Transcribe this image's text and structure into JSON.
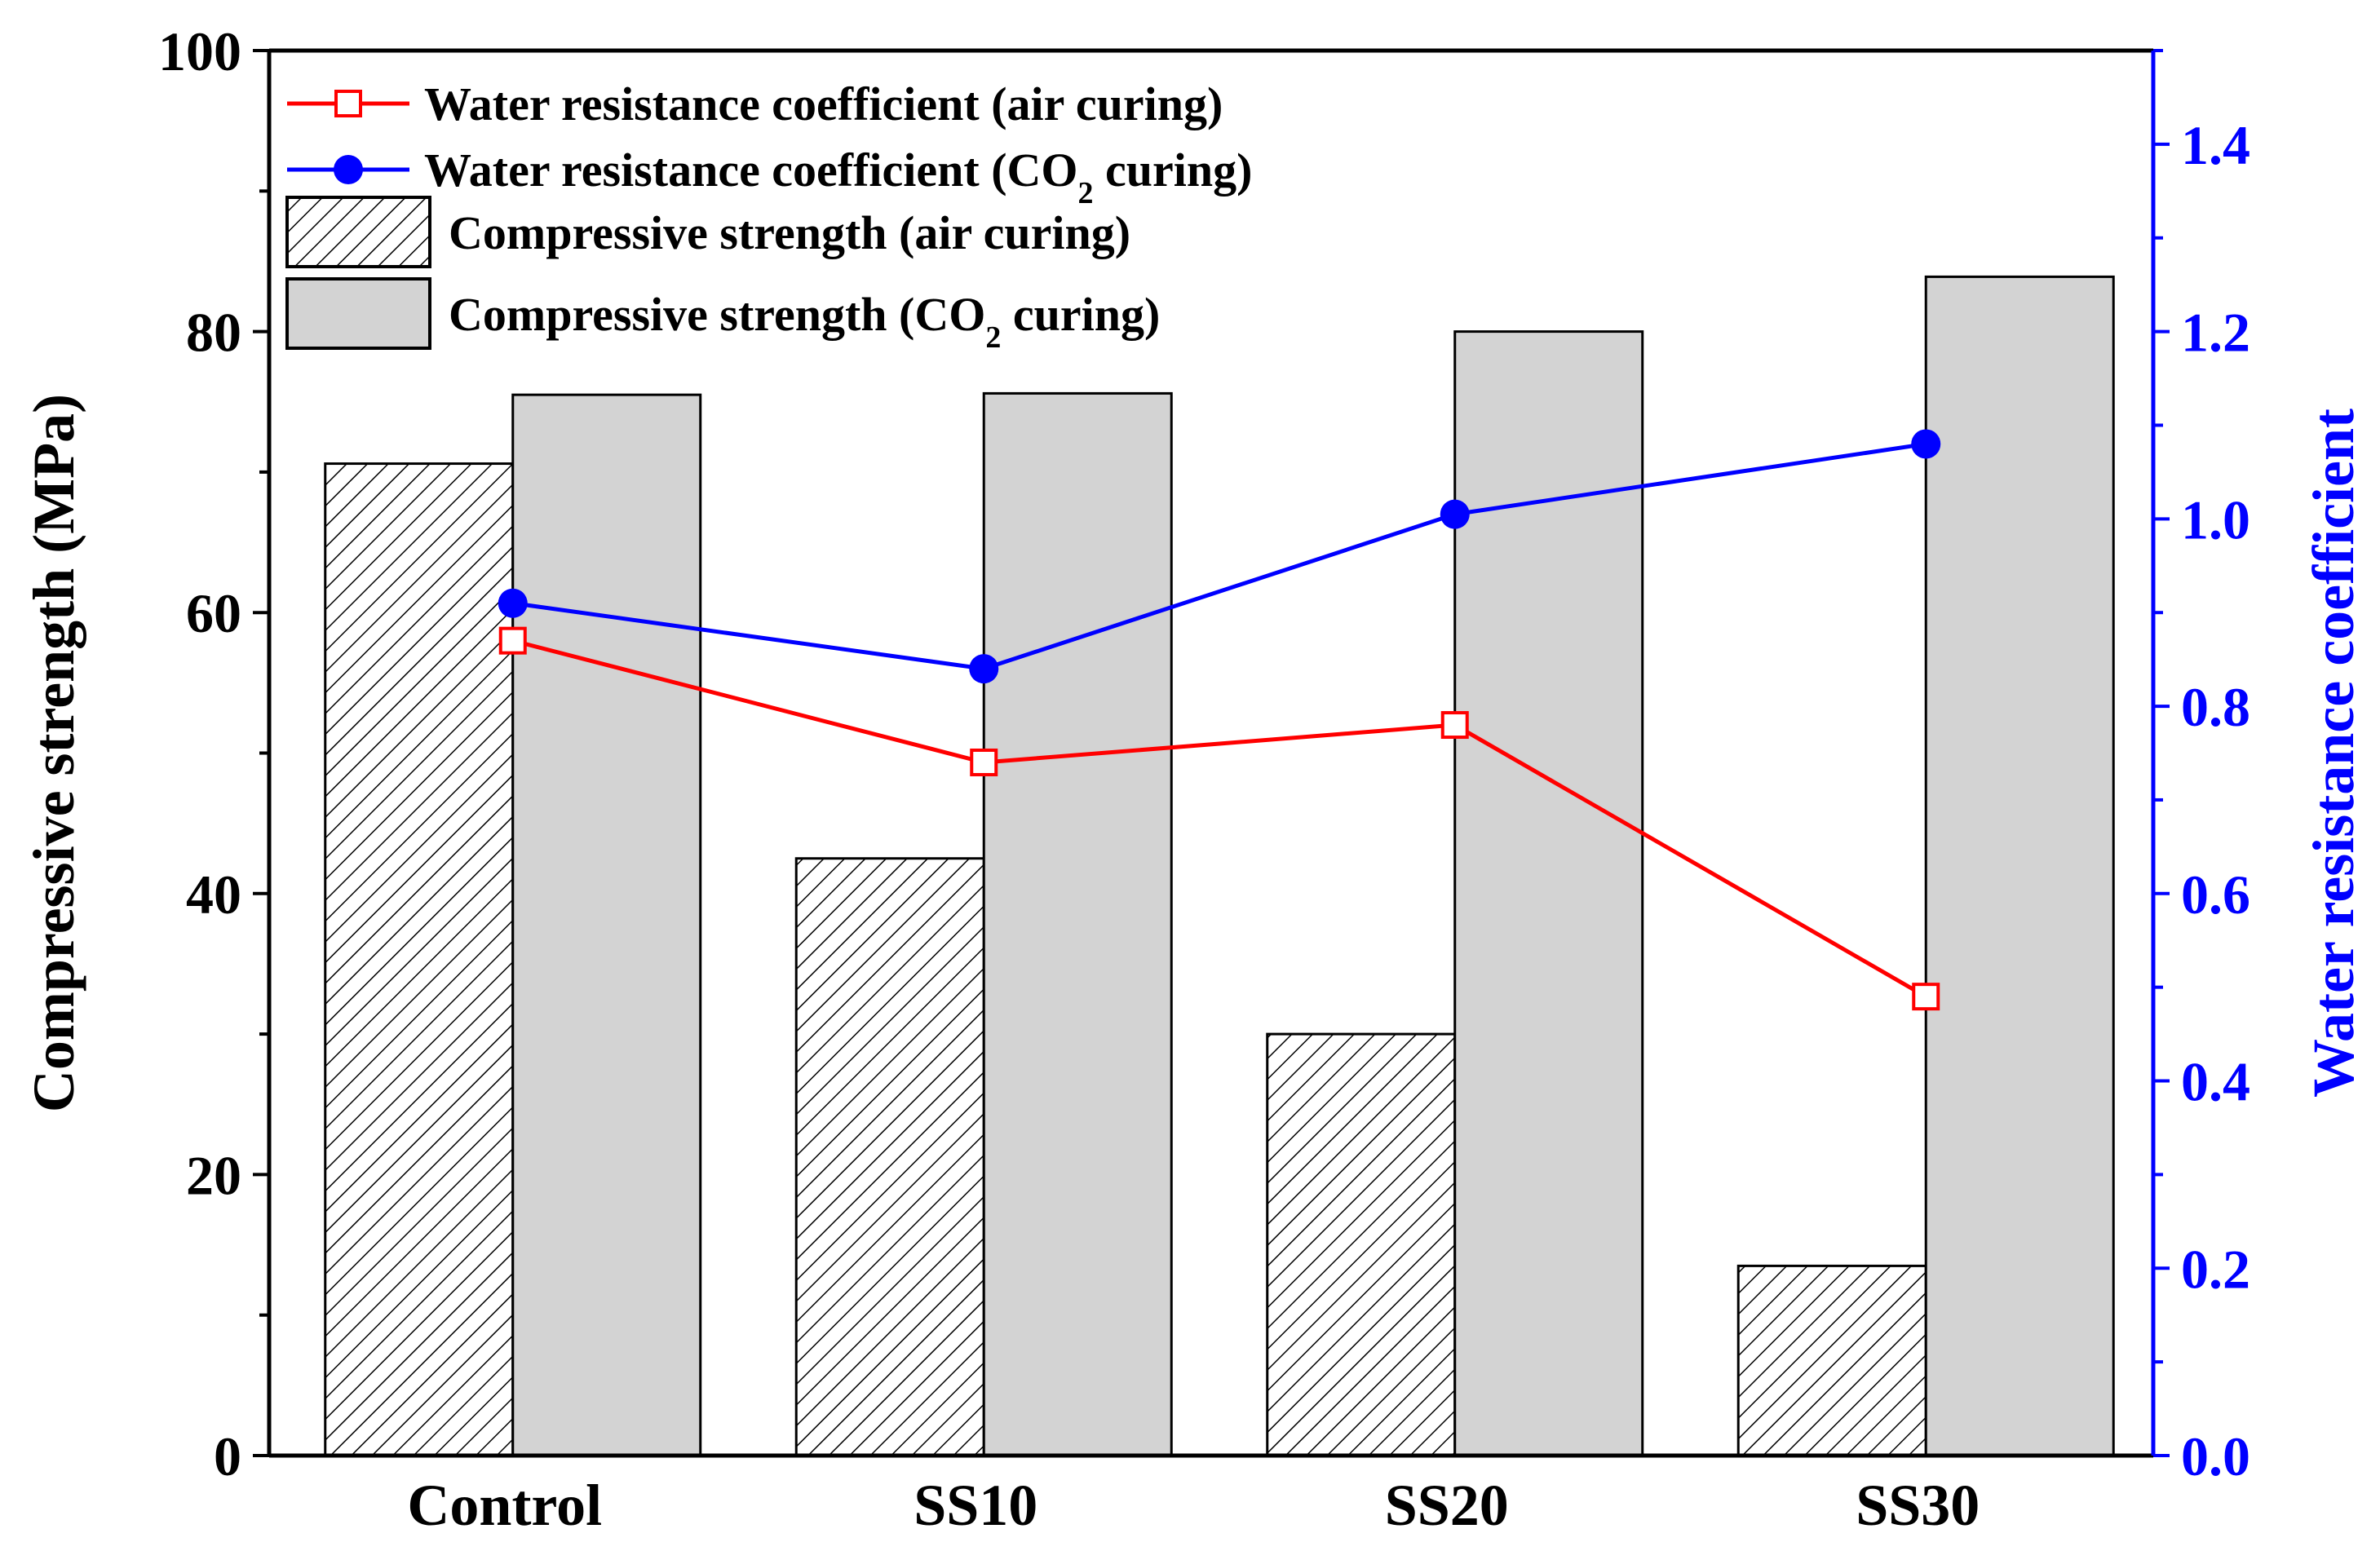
{
  "chart_data": {
    "type": "bar",
    "categories": [
      "Control",
      "SS10",
      "SS20",
      "SS30"
    ],
    "left_axis": {
      "label": "Compressive strength (MPa)",
      "ylim": [
        0,
        100
      ],
      "ticks": [
        "0",
        "20",
        "40",
        "60",
        "80",
        "100"
      ],
      "color": "#000000"
    },
    "right_axis": {
      "label": "Water resistance coefficient",
      "ylim": [
        0.0,
        1.5
      ],
      "ticks": [
        "0.0",
        "0.2",
        "0.4",
        "0.6",
        "0.8",
        "1.0",
        "1.2",
        "1.4"
      ],
      "color": "#0000ff"
    },
    "bar_series": [
      {
        "name": "Compressive strength (air curing)",
        "label_main": "Compressive strength (air curing)",
        "fill": "hatch",
        "values": [
          70.6,
          42.5,
          30.0,
          13.5
        ]
      },
      {
        "name": "Compressive strength (CO2 curing)",
        "label_main": "Compressive strength (CO",
        "label_sub": "2",
        "label_tail": " curing)",
        "fill": "#d3d3d3",
        "values": [
          75.5,
          75.6,
          80.0,
          83.9
        ]
      }
    ],
    "line_series": [
      {
        "name": "Water resistance coefficient (air curing)",
        "label_main": "Water resistance coefficient (air curing)",
        "color": "#ff0000",
        "marker": "open-square",
        "values": [
          0.87,
          0.74,
          0.78,
          0.49
        ]
      },
      {
        "name": "Water resistance coefficient (CO2 curing)",
        "label_main": "Water resistance coefficient (CO",
        "label_sub": "2",
        "label_tail": " curing)",
        "color": "#0000ff",
        "marker": "filled-circle",
        "values": [
          0.91,
          0.84,
          1.005,
          1.08
        ]
      }
    ],
    "legend_position": "top-left",
    "grid": false
  }
}
